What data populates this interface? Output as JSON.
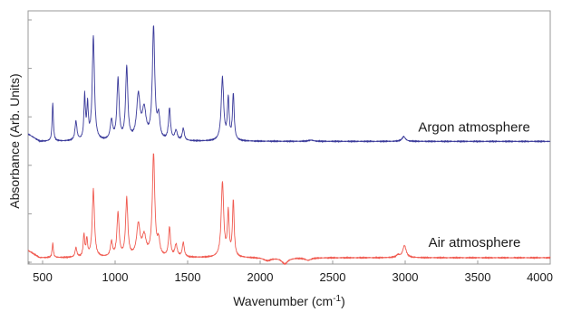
{
  "chart_data": {
    "type": "line",
    "xlabel": "Wavenumber (cm",
    "xlabel_sup": "-1",
    "xlabel_close": ")",
    "ylabel": "Absorbance (Arb. Units)",
    "xlim": [
      400,
      4000
    ],
    "ylim": [
      0,
      1
    ],
    "x_ticks": [
      500,
      1000,
      1500,
      2000,
      2500,
      3000,
      3500,
      4000
    ],
    "grid": false,
    "legend": "none",
    "series": [
      {
        "name": "Argon atmosphere",
        "color": "#3a3a9a",
        "baseline": 0.48,
        "noise": 0.004,
        "peaks": [
          {
            "x": 570,
            "h": 0.16,
            "w": 5
          },
          {
            "x": 730,
            "h": 0.08,
            "w": 8
          },
          {
            "x": 790,
            "h": 0.18,
            "w": 6
          },
          {
            "x": 810,
            "h": 0.14,
            "w": 6
          },
          {
            "x": 850,
            "h": 0.43,
            "w": 9
          },
          {
            "x": 975,
            "h": 0.08,
            "w": 10
          },
          {
            "x": 1020,
            "h": 0.25,
            "w": 9
          },
          {
            "x": 1080,
            "h": 0.3,
            "w": 9
          },
          {
            "x": 1160,
            "h": 0.18,
            "w": 14
          },
          {
            "x": 1200,
            "h": 0.12,
            "w": 16
          },
          {
            "x": 1265,
            "h": 0.46,
            "w": 10
          },
          {
            "x": 1300,
            "h": 0.09,
            "w": 10
          },
          {
            "x": 1375,
            "h": 0.13,
            "w": 8
          },
          {
            "x": 1420,
            "h": 0.04,
            "w": 10
          },
          {
            "x": 1470,
            "h": 0.05,
            "w": 8
          },
          {
            "x": 1740,
            "h": 0.26,
            "w": 10
          },
          {
            "x": 1780,
            "h": 0.17,
            "w": 7
          },
          {
            "x": 1815,
            "h": 0.19,
            "w": 7
          },
          {
            "x": 2350,
            "h": 0.005,
            "w": 20
          },
          {
            "x": 2990,
            "h": 0.02,
            "w": 14
          }
        ],
        "dips": [],
        "label": "Argon atmosphere",
        "label_x": 3090,
        "label_y": 0.52
      },
      {
        "name": "Air atmosphere",
        "color": "#f05a50",
        "baseline": 0.0,
        "noise": 0.004,
        "peaks": [
          {
            "x": 570,
            "h": 0.06,
            "w": 5
          },
          {
            "x": 730,
            "h": 0.04,
            "w": 7
          },
          {
            "x": 785,
            "h": 0.09,
            "w": 6
          },
          {
            "x": 805,
            "h": 0.07,
            "w": 6
          },
          {
            "x": 850,
            "h": 0.28,
            "w": 9
          },
          {
            "x": 975,
            "h": 0.06,
            "w": 9
          },
          {
            "x": 1020,
            "h": 0.18,
            "w": 9
          },
          {
            "x": 1080,
            "h": 0.24,
            "w": 9
          },
          {
            "x": 1160,
            "h": 0.13,
            "w": 14
          },
          {
            "x": 1200,
            "h": 0.08,
            "w": 16
          },
          {
            "x": 1265,
            "h": 0.42,
            "w": 10
          },
          {
            "x": 1300,
            "h": 0.06,
            "w": 10
          },
          {
            "x": 1375,
            "h": 0.12,
            "w": 8
          },
          {
            "x": 1420,
            "h": 0.05,
            "w": 10
          },
          {
            "x": 1470,
            "h": 0.06,
            "w": 8
          },
          {
            "x": 1740,
            "h": 0.31,
            "w": 10
          },
          {
            "x": 1780,
            "h": 0.18,
            "w": 7
          },
          {
            "x": 1815,
            "h": 0.23,
            "w": 7
          },
          {
            "x": 2950,
            "h": 0.01,
            "w": 14
          },
          {
            "x": 2995,
            "h": 0.05,
            "w": 14
          }
        ],
        "dips": [
          {
            "x": 2050,
            "h": 0.012,
            "w": 30
          },
          {
            "x": 2170,
            "h": 0.025,
            "w": 25
          },
          {
            "x": 2330,
            "h": 0.01,
            "w": 25
          }
        ],
        "label": "Air atmosphere",
        "label_x": 3160,
        "label_y": 0.045
      }
    ]
  }
}
